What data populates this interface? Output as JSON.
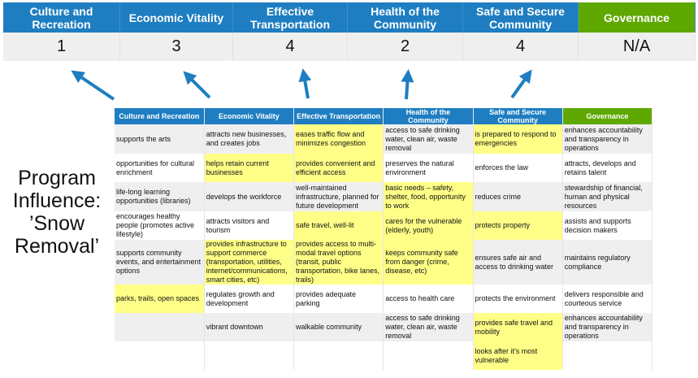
{
  "summary": {
    "categories": [
      "Culture and Recreation",
      "Economic Vitality",
      "Effective Transportation",
      "Health of the Community",
      "Safe and Secure Community",
      "Governance"
    ],
    "scores": [
      "1",
      "3",
      "4",
      "2",
      "4",
      "N/A"
    ]
  },
  "program_label": "Program Influence: ’Snow Removal’",
  "colors": {
    "header_blue": "#1e7ec1",
    "governance_green": "#5fa800",
    "highlight_yellow": "#ffff88"
  },
  "table": {
    "headers": [
      "Culture and Recreation",
      "Economic Vitality",
      "Effective Transportation",
      "Health of the Community",
      "Safe and Secure Community",
      "Governance"
    ],
    "rows": [
      {
        "cells": [
          "supports the arts",
          "attracts new businesses, and creates jobs",
          "eases traffic flow and minimizes congestion",
          "access to safe drinking water, clean air, waste removal",
          "is prepared to respond to emergencies",
          "enhances accountability and transparency in operations"
        ],
        "highlighted": [
          false,
          false,
          true,
          false,
          true,
          false
        ]
      },
      {
        "cells": [
          "opportunities for cultural enrichment",
          "helps retain current businesses",
          "provides convenient and efficient access",
          "preserves the natural environment",
          "enforces the law",
          "attracts, develops and retains talent"
        ],
        "highlighted": [
          false,
          true,
          true,
          false,
          false,
          false
        ]
      },
      {
        "cells": [
          "life-long learning opportunities (libraries)",
          "develops the workforce",
          "well-maintained infrastructure, planned for future development",
          "basic needs – safety, shelter, food, opportunity to work",
          "reduces crime",
          "stewardship of financial, human and physical resources"
        ],
        "highlighted": [
          false,
          false,
          false,
          true,
          false,
          false
        ]
      },
      {
        "cells": [
          "encourages healthy people (promotes active lifestyle)",
          "attracts visitors and tourism",
          "safe travel, well-lit",
          "cares for the vulnerable (elderly, youth)",
          "protects property",
          "assists and supports decision makers"
        ],
        "highlighted": [
          false,
          false,
          true,
          true,
          true,
          false
        ]
      },
      {
        "cells": [
          "supports community events, and entertainment options",
          "provides infrastructure to support commerce (transportation, utilities, internet/communications, smart cities, etc)",
          "provides access to multi-modal travel options (transit, public transportation, bike lanes, trails)",
          "keeps community safe from danger (crime, disease, etc)",
          "ensures safe air and access to drinking water",
          "maintains regulatory compliance"
        ],
        "highlighted": [
          false,
          true,
          true,
          true,
          false,
          false
        ]
      },
      {
        "cells": [
          "parks, trails, open spaces",
          "regulates growth and development",
          "provides adequate parking",
          "access to health care",
          "protects the environment",
          "delivers responsible and courteous service"
        ],
        "highlighted": [
          true,
          false,
          false,
          false,
          false,
          false
        ]
      },
      {
        "cells": [
          "",
          "vibrant downtown",
          "walkable community",
          "access to safe drinking water, clean air, waste removal",
          "provides safe travel and mobility",
          "enhances accountability and transparency in operations"
        ],
        "highlighted": [
          false,
          false,
          false,
          false,
          true,
          false
        ]
      },
      {
        "cells": [
          "",
          "",
          "",
          "",
          "looks after it's most vulnerable",
          ""
        ],
        "highlighted": [
          false,
          false,
          false,
          false,
          true,
          false
        ]
      }
    ]
  }
}
